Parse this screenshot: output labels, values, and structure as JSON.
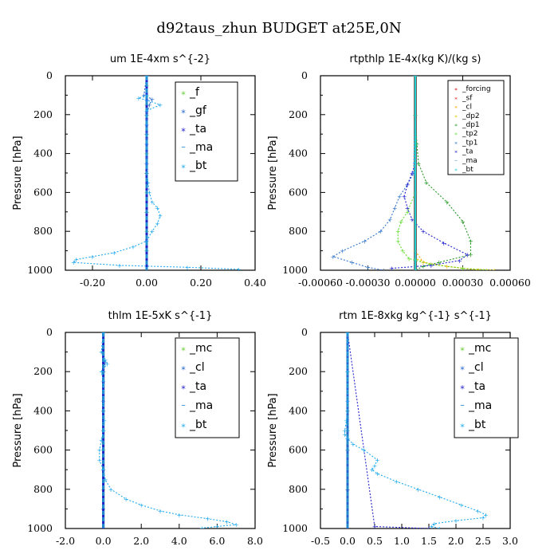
{
  "figure": {
    "title": "d92taus_zhun  BUDGET at25E,0N"
  },
  "chart_data": [
    {
      "type": "line",
      "title": "um   1E-4xm s^{-2}",
      "ylabel": "Pressure [hPa]",
      "xlim": [
        -0.3,
        0.4
      ],
      "ylim": [
        1000,
        0
      ],
      "xticks": [
        "-0.20",
        "0.00",
        "0.20",
        "0.40"
      ],
      "xtick_values": [
        -0.2,
        0.0,
        0.2,
        0.4
      ],
      "yticks": [
        "0",
        "200",
        "400",
        "600",
        "800",
        "1000"
      ],
      "ytick_values": [
        0,
        200,
        400,
        600,
        800,
        1000
      ],
      "legend_position": "top-right",
      "series": [
        {
          "name": "_f",
          "color": "#66cc33",
          "style": "dot",
          "y": [
            0,
            50,
            100,
            150,
            200,
            300,
            400,
            500,
            600,
            700,
            800,
            900,
            1000
          ],
          "x": [
            0,
            0,
            0,
            0,
            0,
            0,
            0,
            0,
            0,
            0,
            0,
            0,
            0
          ]
        },
        {
          "name": "_gf",
          "color": "#2266cc",
          "style": "dot",
          "y": [
            0,
            100,
            120,
            150,
            200,
            300,
            500,
            700,
            900,
            1000
          ],
          "x": [
            0,
            -0.01,
            0.02,
            0.01,
            0,
            0,
            0,
            0,
            0,
            0
          ]
        },
        {
          "name": "_ta",
          "color": "#2222cc",
          "style": "dot",
          "y": [
            0,
            500,
            1000
          ],
          "x": [
            0,
            0,
            0
          ]
        },
        {
          "name": "_ma",
          "color": "#2288cc",
          "style": "dash",
          "y": [
            0,
            500,
            1000
          ],
          "x": [
            0,
            0,
            0
          ]
        },
        {
          "name": "_bt",
          "color": "#22aaee",
          "style": "dot",
          "y": [
            0,
            100,
            115,
            125,
            150,
            180,
            250,
            350,
            450,
            550,
            600,
            650,
            680,
            720,
            760,
            800,
            850,
            880,
            910,
            930,
            945,
            960,
            975,
            985,
            995
          ],
          "x": [
            0,
            0,
            -0.03,
            0.0,
            0.05,
            0.0,
            0.0,
            0.0,
            0.0,
            0.005,
            0.01,
            0.02,
            0.04,
            0.05,
            0.04,
            0.02,
            0.0,
            -0.05,
            -0.12,
            -0.2,
            -0.26,
            -0.27,
            -0.1,
            0.15,
            0.34
          ]
        }
      ]
    },
    {
      "type": "line",
      "title": "rtpthlp   1E-4x(kg K)/(kg s)",
      "ylabel": "Pressure [hPa]",
      "xlim": [
        -0.0006,
        0.0006
      ],
      "ylim": [
        1000,
        0
      ],
      "xticks": [
        "-0.00060",
        "-0.00030",
        "0.00000",
        "0.00030",
        "0.00060"
      ],
      "xtick_values": [
        -0.0006,
        -0.0003,
        0.0,
        0.0003,
        0.0006
      ],
      "yticks": [
        "0",
        "200",
        "400",
        "600",
        "800",
        "1000"
      ],
      "ytick_values": [
        0,
        200,
        400,
        600,
        800,
        1000
      ],
      "legend_position": "top-right",
      "series": [
        {
          "name": "_forcing",
          "color": "#cc0000",
          "style": "solid",
          "y": [
            0,
            1000
          ],
          "x": [
            0,
            0
          ]
        },
        {
          "name": "_sf",
          "color": "#dd2222",
          "style": "dot",
          "y": [
            0,
            1000
          ],
          "x": [
            0,
            0
          ]
        },
        {
          "name": "_cl",
          "color": "#ffaa00",
          "style": "dot",
          "y": [
            0,
            900,
            960,
            980,
            1000
          ],
          "x": [
            0,
            0,
            5e-05,
            0.0002,
            0.0004
          ]
        },
        {
          "name": "_dp2",
          "color": "#ddcc00",
          "style": "dot",
          "y": [
            0,
            940,
            970,
            990,
            1000
          ],
          "x": [
            0,
            0,
            0.0001,
            0.0003,
            0.0005
          ]
        },
        {
          "name": "_dp1",
          "color": "#229922",
          "style": "dot",
          "y": [
            0,
            200,
            350,
            450,
            550,
            650,
            750,
            850,
            920,
            960,
            980,
            1000
          ],
          "x": [
            0,
            0,
            1e-05,
            2e-05,
            7e-05,
            0.0002,
            0.0003,
            0.00035,
            0.00035,
            0.00015,
            5e-05,
            0
          ]
        },
        {
          "name": "_tp2",
          "color": "#66dd33",
          "style": "dot",
          "y": [
            0,
            600,
            700,
            750,
            800,
            850,
            900,
            940,
            970,
            990,
            1000
          ],
          "x": [
            0,
            0,
            -5e-05,
            -9e-05,
            -0.00011,
            -0.00011,
            -8e-05,
            -4e-05,
            0.0001,
            0.0003,
            0.00045
          ]
        },
        {
          "name": "_tp1",
          "color": "#3377cc",
          "style": "dot",
          "y": [
            0,
            500,
            560,
            620,
            680,
            740,
            800,
            850,
            900,
            930,
            960,
            985,
            1000
          ],
          "x": [
            0,
            -1e-05,
            -5e-05,
            -0.0001,
            -0.00013,
            -0.00016,
            -0.00022,
            -0.00032,
            -0.00046,
            -0.00052,
            -0.0004,
            -0.0003,
            -0.0002
          ]
        },
        {
          "name": "_ta",
          "color": "#2222cc",
          "style": "dot",
          "y": [
            0,
            450,
            500,
            560,
            620,
            680,
            740,
            800,
            860,
            920,
            950,
            975,
            990
          ],
          "x": [
            0,
            0,
            -2e-05,
            -5e-05,
            -7e-05,
            -5e-05,
            -2e-05,
            5e-05,
            0.00018,
            0.00033,
            0.00028,
            0.0001,
            -0.00015
          ]
        },
        {
          "name": "_ma",
          "color": "#2288cc",
          "style": "dash",
          "y": [
            0,
            1000
          ],
          "x": [
            0,
            0
          ]
        },
        {
          "name": "_bt",
          "color": "#22cccc",
          "style": "dot",
          "y": [
            0,
            1000
          ],
          "x": [
            0,
            0
          ]
        }
      ]
    },
    {
      "type": "line",
      "title": "thlm   1E-5xK s^{-1}",
      "ylabel": "Pressure [hPa]",
      "xlim": [
        -2.0,
        8.0
      ],
      "ylim": [
        1000,
        0
      ],
      "xticks": [
        "-2.0",
        "0.0",
        "2.0",
        "4.0",
        "6.0",
        "8.0"
      ],
      "xtick_values": [
        -2.0,
        0.0,
        2.0,
        4.0,
        6.0,
        8.0
      ],
      "yticks": [
        "0",
        "200",
        "400",
        "600",
        "800",
        "1000"
      ],
      "ytick_values": [
        0,
        200,
        400,
        600,
        800,
        1000
      ],
      "legend_position": "top-right",
      "series": [
        {
          "name": "_mc",
          "color": "#66cc33",
          "style": "dot",
          "y": [
            0,
            200,
            400,
            600,
            800,
            1000
          ],
          "x": [
            0,
            0,
            0,
            0,
            0,
            0
          ]
        },
        {
          "name": "_cl",
          "color": "#2266cc",
          "style": "dot",
          "y": [
            0,
            100,
            150,
            200,
            400,
            700,
            900,
            1000
          ],
          "x": [
            0,
            -0.1,
            0.1,
            0,
            0,
            0,
            0,
            0
          ]
        },
        {
          "name": "_ta",
          "color": "#2222cc",
          "style": "dot",
          "y": [
            0,
            500,
            1000
          ],
          "x": [
            0,
            0,
            0
          ]
        },
        {
          "name": "_ma",
          "color": "#2288cc",
          "style": "dash",
          "y": [
            0,
            500,
            1000
          ],
          "x": [
            0,
            0,
            0
          ]
        },
        {
          "name": "_bt",
          "color": "#22aaee",
          "style": "dot",
          "y": [
            0,
            100,
            140,
            160,
            200,
            250,
            350,
            450,
            500,
            550,
            600,
            650,
            700,
            750,
            800,
            850,
            880,
            910,
            930,
            950,
            965,
            980,
            990,
            998
          ],
          "x": [
            0,
            -0.1,
            0.1,
            0.2,
            -0.1,
            0,
            0,
            0.05,
            0.0,
            -0.1,
            -0.2,
            -0.2,
            0,
            0.1,
            0.4,
            1.2,
            2.0,
            3.0,
            4.0,
            5.5,
            6.5,
            7.0,
            6.0,
            5.2
          ]
        }
      ]
    },
    {
      "type": "line",
      "title": "rtm   1E-8xkg kg^{-1} s^{-1}",
      "ylabel": "Pressure [hPa]",
      "xlim": [
        -0.5,
        3.0
      ],
      "ylim": [
        1000,
        0
      ],
      "xticks": [
        "-0.5",
        "0.0",
        "0.5",
        "1.0",
        "1.5",
        "2.0",
        "2.5",
        "3.0"
      ],
      "xtick_values": [
        -0.5,
        0.0,
        0.5,
        1.0,
        1.5,
        2.0,
        2.5,
        3.0
      ],
      "yticks": [
        "0",
        "200",
        "400",
        "600",
        "800",
        "1000"
      ],
      "ytick_values": [
        0,
        200,
        400,
        600,
        800,
        1000
      ],
      "legend_position": "top-right",
      "series": [
        {
          "name": "_mc",
          "color": "#66cc33",
          "style": "dot",
          "y": [
            0,
            200,
            400,
            600,
            800,
            1000
          ],
          "x": [
            0,
            0,
            0,
            0,
            0,
            0
          ]
        },
        {
          "name": "_cl",
          "color": "#2266cc",
          "style": "dot",
          "y": [
            0,
            200,
            400,
            600,
            800,
            1000
          ],
          "x": [
            0,
            0,
            0,
            0,
            0,
            0
          ]
        },
        {
          "name": "_ta",
          "color": "#2222cc",
          "style": "dot",
          "y": [
            0,
            990,
            1000
          ],
          "x": [
            0,
            0.5,
            1.5
          ]
        },
        {
          "name": "_ma",
          "color": "#2288cc",
          "style": "dash",
          "y": [
            0,
            500,
            1000
          ],
          "x": [
            0,
            0,
            0
          ]
        },
        {
          "name": "_bt",
          "color": "#22aaee",
          "style": "dot",
          "y": [
            0,
            200,
            350,
            450,
            500,
            520,
            540,
            570,
            600,
            650,
            680,
            700,
            720,
            760,
            800,
            840,
            880,
            910,
            930,
            945,
            960,
            975,
            990,
            1000
          ],
          "x": [
            0,
            0,
            0,
            -0.02,
            -0.05,
            -0.05,
            0.0,
            0.1,
            0.3,
            0.55,
            0.5,
            0.45,
            0.55,
            0.9,
            1.3,
            1.7,
            2.1,
            2.4,
            2.55,
            2.5,
            2.0,
            1.6,
            1.55,
            1.7
          ]
        }
      ]
    }
  ]
}
